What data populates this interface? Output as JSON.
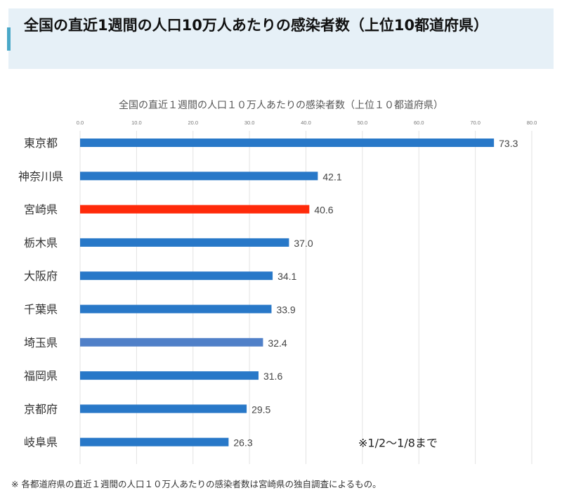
{
  "header": {
    "title": "全国の直近1週間の人口10万人あたりの感染者数（上位10都道府県）",
    "accent_color": "#4aa8c8"
  },
  "chart_data": {
    "type": "bar",
    "orientation": "horizontal",
    "title": "全国の直近１週間の人口１０万人あたりの感染者数（上位１０都道府県）",
    "categories": [
      "東京都",
      "神奈川県",
      "宮崎県",
      "栃木県",
      "大阪府",
      "千葉県",
      "埼玉県",
      "福岡県",
      "京都府",
      "岐阜県"
    ],
    "values": [
      73.3,
      42.1,
      40.6,
      37.0,
      34.1,
      33.9,
      32.4,
      31.6,
      29.5,
      26.3
    ],
    "value_labels": [
      "73.3",
      "42.1",
      "40.6",
      "37.0",
      "34.1",
      "33.9",
      "32.4",
      "31.6",
      "29.5",
      "26.3"
    ],
    "colors": [
      "#2878c8",
      "#2878c8",
      "#ff2a0a",
      "#2878c8",
      "#2878c8",
      "#2878c8",
      "#5080c8",
      "#2878c8",
      "#2878c8",
      "#2878c8"
    ],
    "xlim": [
      0,
      80
    ],
    "xticks": [
      "0.0",
      "10.0",
      "20.0",
      "30.0",
      "40.0",
      "50.0",
      "60.0",
      "70.0",
      "80.0"
    ],
    "xaxis_position": "top",
    "grid": true,
    "annotation": "※1/2～1/8まで"
  },
  "footnote": "※ 各都道府県の直近１週間の人口１０万人あたりの感染者数は宮崎県の独自調査によるもの。"
}
